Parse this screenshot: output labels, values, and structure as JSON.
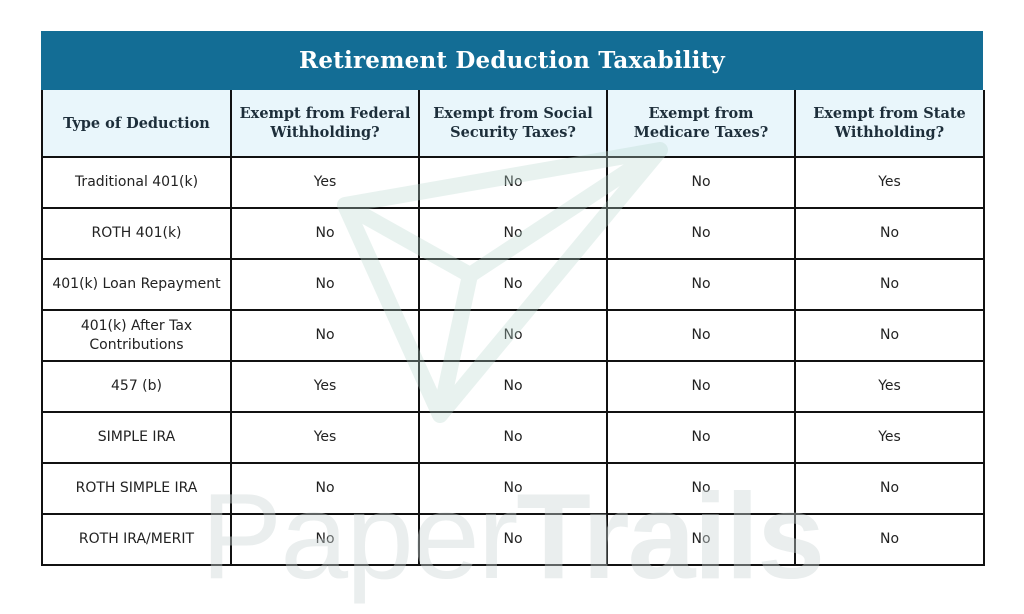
{
  "table": {
    "title": "Retirement Deduction Taxability",
    "columns": [
      "Type of Deduction",
      "Exempt from Federal Withholding?",
      "Exempt from Social Security Taxes?",
      "Exempt from Medicare Taxes?",
      "Exempt from State Withholding?"
    ],
    "rows": [
      [
        "Traditional 401(k)",
        "Yes",
        "No",
        "No",
        "Yes"
      ],
      [
        "ROTH 401(k)",
        "No",
        "No",
        "No",
        "No"
      ],
      [
        "401(k) Loan Repayment",
        "No",
        "No",
        "No",
        "No"
      ],
      [
        "401(k) After Tax Contributions",
        "No",
        "No",
        "No",
        "No"
      ],
      [
        "457 (b)",
        "Yes",
        "No",
        "No",
        "Yes"
      ],
      [
        "SIMPLE IRA",
        "Yes",
        "No",
        "No",
        "Yes"
      ],
      [
        "ROTH SIMPLE IRA",
        "No",
        "No",
        "No",
        "No"
      ],
      [
        "ROTH IRA/MERIT",
        "No",
        "No",
        "No",
        "No"
      ]
    ]
  },
  "watermark": {
    "text_part1": "Paper",
    "text_part2": "Trails",
    "logo_icon": "paper-plane-icon",
    "color": "#ccd7d7"
  },
  "colors": {
    "title_bar": "#136d95",
    "header_bg": "#e9f6fb",
    "border": "#111111"
  }
}
